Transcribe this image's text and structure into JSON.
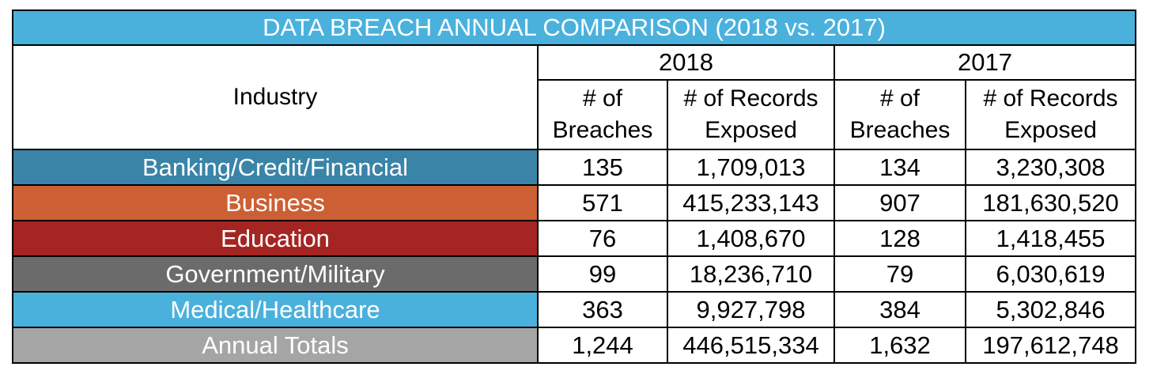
{
  "chart_data": {
    "type": "table",
    "title": "DATA BREACH ANNUAL COMPARISON (2018 vs. 2017)",
    "header": {
      "industry": "Industry",
      "years": [
        "2018",
        "2017"
      ],
      "breaches": [
        "# of",
        "Breaches"
      ],
      "records": [
        "# of Records",
        "Exposed"
      ]
    },
    "rows": [
      {
        "industry": "Banking/Credit/Financial",
        "color": "#3a84a8",
        "values": [
          "135",
          "1,709,013",
          "134",
          "3,230,308"
        ]
      },
      {
        "industry": "Business",
        "color": "#cd5f35",
        "values": [
          "571",
          "415,233,143",
          "907",
          "181,630,520"
        ]
      },
      {
        "industry": "Education",
        "color": "#a52523",
        "values": [
          "76",
          "1,408,670",
          "128",
          "1,418,455"
        ]
      },
      {
        "industry": "Government/Military",
        "color": "#6b6b6b",
        "values": [
          "99",
          "18,236,710",
          "79",
          "6,030,619"
        ]
      },
      {
        "industry": "Medical/Healthcare",
        "color": "#4ab1dd",
        "values": [
          "363",
          "9,927,798",
          "384",
          "5,302,846"
        ]
      },
      {
        "industry": "Annual Totals",
        "color": "#a5a5a5",
        "values": [
          "1,244",
          "446,515,334",
          "1,632",
          "197,612,748"
        ]
      }
    ]
  }
}
